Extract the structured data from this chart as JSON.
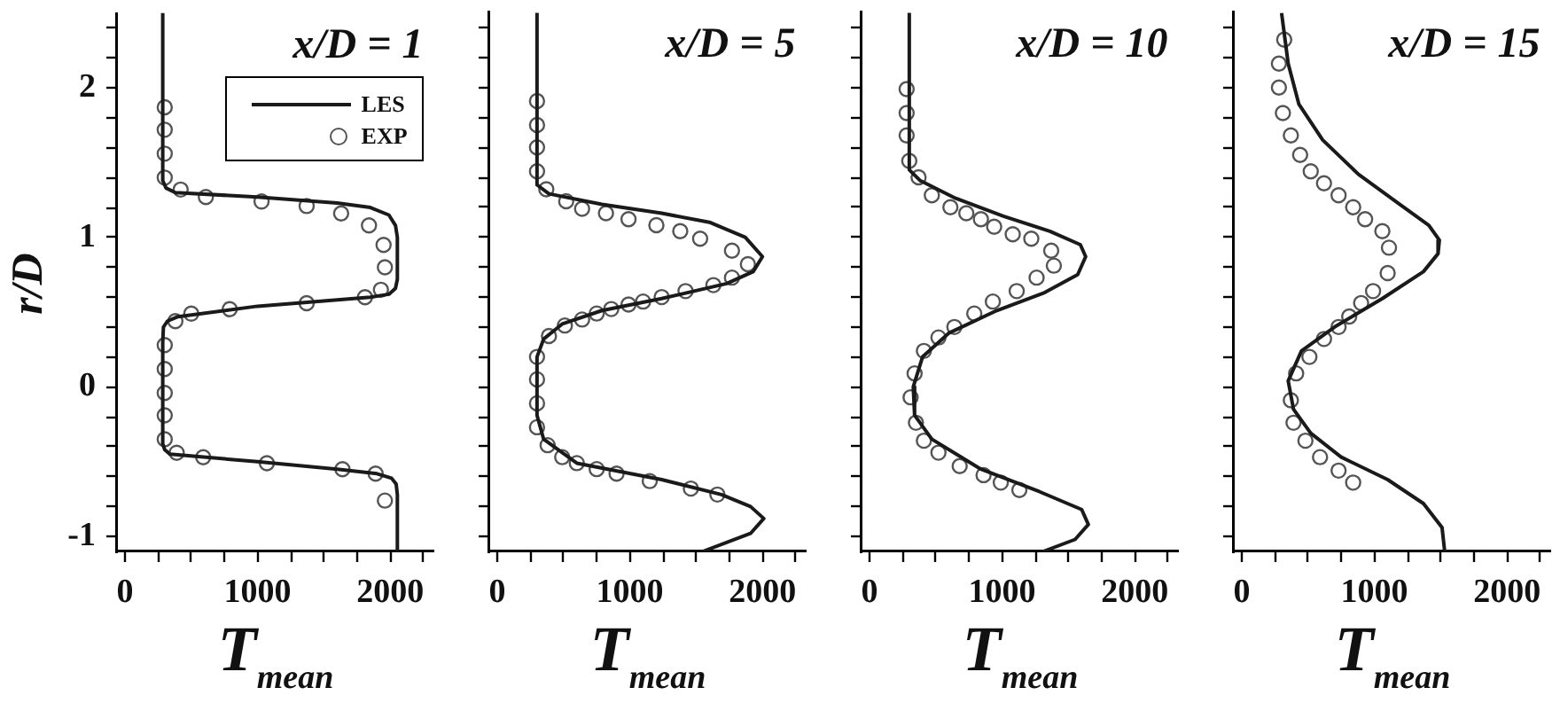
{
  "chart_data": [
    {
      "type": "line",
      "title": "x/D = 1",
      "xlabel": "T$_{mean}$",
      "ylabel": "r/D",
      "xlim": [
        -60,
        2330
      ],
      "ylim": [
        -1.1,
        2.5
      ],
      "xticks": [
        0,
        {
          "value": 250,
          "label": null
        },
        {
          "value": 500,
          "label": null
        },
        {
          "value": 750,
          "label": null
        },
        1000,
        {
          "value": 1250,
          "label": null
        },
        {
          "value": 1500,
          "label": null
        },
        {
          "value": 1750,
          "label": null
        },
        2000,
        {
          "value": 2250,
          "label": null
        }
      ],
      "yticks": [
        -1,
        {
          "value": -0.8,
          "label": null
        },
        {
          "value": -0.6,
          "label": null
        },
        {
          "value": -0.4,
          "label": null
        },
        {
          "value": -0.2,
          "label": null
        },
        0,
        {
          "value": 0.2,
          "label": null
        },
        {
          "value": 0.4,
          "label": null
        },
        {
          "value": 0.6,
          "label": null
        },
        {
          "value": 0.8,
          "label": null
        },
        1,
        {
          "value": 1.2,
          "label": null
        },
        {
          "value": 1.4,
          "label": null
        },
        {
          "value": 1.6,
          "label": null
        },
        {
          "value": 1.8,
          "label": null
        },
        2,
        {
          "value": 2.2,
          "label": null
        },
        {
          "value": 2.4,
          "label": null
        }
      ],
      "legend": "top right",
      "series": [
        {
          "name": "LES",
          "type": "line",
          "marker": "none",
          "color": "#1a1a1a",
          "x": [
            285,
            285,
            310,
            380,
            1000,
            1600,
            1850,
            1990,
            2040,
            2054,
            2054,
            2040,
            1990,
            1850,
            1000,
            400,
            320,
            290,
            285,
            285,
            300,
            340,
            1000,
            1600,
            1900,
            2010,
            2045,
            2054,
            2054
          ],
          "values": [
            2.5,
            1.38,
            1.33,
            1.3,
            1.27,
            1.23,
            1.2,
            1.15,
            1.08,
            1.0,
            0.72,
            0.66,
            0.62,
            0.6,
            0.54,
            0.47,
            0.44,
            0.4,
            0.3,
            -0.38,
            -0.42,
            -0.45,
            -0.5,
            -0.55,
            -0.58,
            -0.61,
            -0.65,
            -0.72,
            -1.1
          ]
        },
        {
          "name": "EXP",
          "type": "scatter",
          "marker": "circle",
          "color": "#555555",
          "x": [
            300,
            300,
            300,
            300,
            420,
            610,
            1030,
            1370,
            1630,
            1840,
            1950,
            1960,
            1930,
            1810,
            1370,
            790,
            500,
            380,
            300,
            300,
            300,
            300,
            300,
            390,
            590,
            1070,
            1640,
            1890,
            1960
          ],
          "values": [
            1.87,
            1.72,
            1.56,
            1.4,
            1.32,
            1.27,
            1.24,
            1.21,
            1.16,
            1.08,
            0.95,
            0.8,
            0.65,
            0.6,
            0.56,
            0.52,
            0.49,
            0.44,
            0.28,
            0.12,
            -0.04,
            -0.19,
            -0.35,
            -0.44,
            -0.47,
            -0.51,
            -0.55,
            -0.58,
            -0.76
          ]
        }
      ]
    },
    {
      "type": "line",
      "title": "x/D = 5",
      "xlabel": "T$_{mean}$",
      "xlim": [
        -60,
        2330
      ],
      "ylim": [
        -1.1,
        2.5
      ],
      "tick_labels": "x",
      "xticks": [
        0,
        {
          "value": 250,
          "label": null
        },
        {
          "value": 500,
          "label": null
        },
        {
          "value": 750,
          "label": null
        },
        1000,
        {
          "value": 1250,
          "label": null
        },
        {
          "value": 1500,
          "label": null
        },
        {
          "value": 1750,
          "label": null
        },
        2000,
        {
          "value": 2250,
          "label": null
        }
      ],
      "yticks": [
        -1,
        {
          "value": -0.8,
          "label": null
        },
        {
          "value": -0.6,
          "label": null
        },
        {
          "value": -0.4,
          "label": null
        },
        {
          "value": -0.2,
          "label": null
        },
        0,
        {
          "value": 0.2,
          "label": null
        },
        {
          "value": 0.4,
          "label": null
        },
        {
          "value": 0.6,
          "label": null
        },
        {
          "value": 0.8,
          "label": null
        },
        1,
        {
          "value": 1.2,
          "label": null
        },
        {
          "value": 1.4,
          "label": null
        },
        {
          "value": 1.6,
          "label": null
        },
        {
          "value": 1.8,
          "label": null
        },
        2,
        {
          "value": 2.2,
          "label": null
        },
        {
          "value": 2.4,
          "label": null
        }
      ],
      "series": [
        {
          "type": "line",
          "marker": "none",
          "color": "#1a1a1a",
          "x": [
            300,
            300,
            390,
            790,
            1240,
            1600,
            1870,
            2000,
            1930,
            1730,
            1240,
            790,
            490,
            350,
            300,
            300,
            350,
            600,
            1240,
            1690,
            1910,
            2010,
            1910,
            1550
          ],
          "values": [
            2.5,
            1.35,
            1.29,
            1.22,
            1.16,
            1.1,
            1.0,
            0.87,
            0.77,
            0.69,
            0.59,
            0.51,
            0.42,
            0.32,
            0.2,
            -0.19,
            -0.35,
            -0.51,
            -0.62,
            -0.72,
            -0.8,
            -0.88,
            -0.98,
            -1.1
          ]
        },
        {
          "type": "scatter",
          "marker": "circle",
          "color": "#555555",
          "x": [
            300,
            300,
            300,
            300,
            370,
            520,
            640,
            820,
            990,
            1200,
            1380,
            1530,
            1770,
            1890,
            1770,
            1630,
            1420,
            1240,
            1100,
            990,
            860,
            750,
            640,
            510,
            390,
            300,
            300,
            300,
            300,
            380,
            490,
            600,
            750,
            900,
            1150,
            1460,
            1660
          ],
          "values": [
            1.91,
            1.75,
            1.6,
            1.44,
            1.32,
            1.24,
            1.19,
            1.16,
            1.12,
            1.08,
            1.04,
            0.99,
            0.91,
            0.82,
            0.73,
            0.68,
            0.64,
            0.6,
            0.57,
            0.55,
            0.52,
            0.49,
            0.45,
            0.41,
            0.34,
            0.2,
            0.05,
            -0.11,
            -0.27,
            -0.39,
            -0.47,
            -0.51,
            -0.55,
            -0.58,
            -0.63,
            -0.68,
            -0.72
          ]
        }
      ]
    },
    {
      "type": "line",
      "title": "x/D = 10",
      "xlabel": "T$_{mean}$",
      "xlim": [
        -60,
        2330
      ],
      "ylim": [
        -1.1,
        2.5
      ],
      "tick_labels": "x",
      "xticks": [
        0,
        {
          "value": 250,
          "label": null
        },
        {
          "value": 500,
          "label": null
        },
        {
          "value": 750,
          "label": null
        },
        1000,
        {
          "value": 1250,
          "label": null
        },
        {
          "value": 1500,
          "label": null
        },
        {
          "value": 1750,
          "label": null
        },
        2000,
        {
          "value": 2250,
          "label": null
        }
      ],
      "yticks": [
        -1,
        {
          "value": -0.8,
          "label": null
        },
        {
          "value": -0.6,
          "label": null
        },
        {
          "value": -0.4,
          "label": null
        },
        {
          "value": -0.2,
          "label": null
        },
        0,
        {
          "value": 0.2,
          "label": null
        },
        {
          "value": 0.4,
          "label": null
        },
        {
          "value": 0.6,
          "label": null
        },
        {
          "value": 0.8,
          "label": null
        },
        1,
        {
          "value": 1.2,
          "label": null
        },
        {
          "value": 1.4,
          "label": null
        },
        {
          "value": 1.6,
          "label": null
        },
        {
          "value": 1.8,
          "label": null
        },
        2,
        {
          "value": 2.2,
          "label": null
        },
        {
          "value": 2.4,
          "label": null
        }
      ],
      "series": [
        {
          "type": "line",
          "marker": "none",
          "color": "#1a1a1a",
          "x": [
            300,
            300,
            380,
            650,
            1010,
            1360,
            1590,
            1630,
            1570,
            1320,
            960,
            600,
            400,
            330,
            340,
            470,
            840,
            1280,
            1600,
            1650,
            1550,
            1310
          ],
          "values": [
            2.5,
            1.45,
            1.38,
            1.26,
            1.14,
            1.04,
            0.95,
            0.87,
            0.75,
            0.63,
            0.51,
            0.36,
            0.2,
            0,
            -0.19,
            -0.35,
            -0.55,
            -0.7,
            -0.82,
            -0.92,
            -1.02,
            -1.1
          ]
        },
        {
          "type": "scatter",
          "marker": "circle",
          "color": "#555555",
          "x": [
            280,
            280,
            280,
            300,
            370,
            470,
            610,
            730,
            840,
            940,
            1080,
            1220,
            1370,
            1390,
            1260,
            1110,
            930,
            790,
            640,
            520,
            410,
            340,
            310,
            350,
            410,
            520,
            680,
            860,
            990,
            1130
          ],
          "values": [
            1.99,
            1.83,
            1.68,
            1.51,
            1.4,
            1.28,
            1.2,
            1.16,
            1.12,
            1.07,
            1.02,
            0.99,
            0.91,
            0.81,
            0.73,
            0.64,
            0.57,
            0.49,
            0.4,
            0.33,
            0.24,
            0.09,
            -0.07,
            -0.24,
            -0.36,
            -0.44,
            -0.53,
            -0.59,
            -0.64,
            -0.69
          ]
        }
      ]
    },
    {
      "type": "line",
      "title": "x/D = 15",
      "xlabel": "T$_{mean}$",
      "xlim": [
        -60,
        2330
      ],
      "ylim": [
        -1.1,
        2.5
      ],
      "tick_labels": "x",
      "xticks": [
        0,
        {
          "value": 250,
          "label": null
        },
        {
          "value": 500,
          "label": null
        },
        {
          "value": 750,
          "label": null
        },
        1000,
        {
          "value": 1250,
          "label": null
        },
        {
          "value": 1500,
          "label": null
        },
        {
          "value": 1750,
          "label": null
        },
        2000,
        {
          "value": 2250,
          "label": null
        }
      ],
      "yticks": [
        -1,
        {
          "value": -0.8,
          "label": null
        },
        {
          "value": -0.6,
          "label": null
        },
        {
          "value": -0.4,
          "label": null
        },
        {
          "value": -0.2,
          "label": null
        },
        0,
        {
          "value": 0.2,
          "label": null
        },
        {
          "value": 0.4,
          "label": null
        },
        {
          "value": 0.6,
          "label": null
        },
        {
          "value": 0.8,
          "label": null
        },
        1,
        {
          "value": 1.2,
          "label": null
        },
        {
          "value": 1.4,
          "label": null
        },
        {
          "value": 1.6,
          "label": null
        },
        {
          "value": 1.8,
          "label": null
        },
        2,
        {
          "value": 2.2,
          "label": null
        },
        {
          "value": 2.4,
          "label": null
        }
      ],
      "series": [
        {
          "type": "line",
          "marker": "none",
          "color": "#1a1a1a",
          "x": [
            300,
            350,
            430,
            610,
            880,
            1190,
            1410,
            1490,
            1480,
            1370,
            1060,
            700,
            450,
            350,
            390,
            520,
            750,
            1100,
            1370,
            1510,
            1530
          ],
          "values": [
            2.5,
            2.16,
            1.89,
            1.65,
            1.42,
            1.22,
            1.08,
            0.98,
            0.89,
            0.77,
            0.59,
            0.4,
            0.24,
            0.04,
            -0.15,
            -0.31,
            -0.47,
            -0.62,
            -0.78,
            -0.94,
            -1.1
          ]
        },
        {
          "type": "scatter",
          "marker": "circle",
          "color": "#555555",
          "x": [
            320,
            280,
            280,
            310,
            370,
            440,
            520,
            620,
            730,
            840,
            930,
            1060,
            1110,
            1100,
            990,
            900,
            810,
            730,
            620,
            510,
            410,
            370,
            390,
            480,
            590,
            730,
            840
          ],
          "values": [
            2.32,
            2.16,
            2.0,
            1.83,
            1.68,
            1.55,
            1.44,
            1.36,
            1.28,
            1.2,
            1.12,
            1.04,
            0.93,
            0.76,
            0.64,
            0.56,
            0.47,
            0.4,
            0.32,
            0.2,
            0.09,
            -0.09,
            -0.24,
            -0.36,
            -0.47,
            -0.56,
            -0.64
          ]
        }
      ]
    }
  ]
}
